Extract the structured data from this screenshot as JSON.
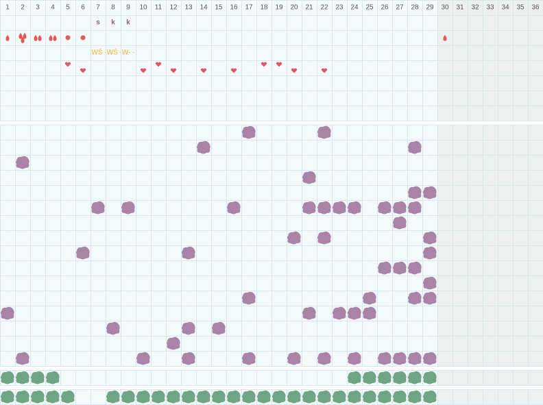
{
  "days": [
    1,
    2,
    3,
    4,
    5,
    6,
    7,
    8,
    9,
    10,
    11,
    12,
    13,
    14,
    15,
    16,
    17,
    18,
    19,
    20,
    21,
    22,
    23,
    24,
    25,
    26,
    27,
    28,
    29,
    30,
    31,
    32,
    33,
    34,
    35,
    36
  ],
  "letters": [
    {
      "day": 7,
      "text": "s"
    },
    {
      "day": 8,
      "text": "k"
    },
    {
      "day": 9,
      "text": "k"
    }
  ],
  "note": "WŚ -WŚ -W- -",
  "drops": [
    {
      "day": 1,
      "count": 1
    },
    {
      "day": 2,
      "count": 3
    },
    {
      "day": 3,
      "count": 2
    },
    {
      "day": 4,
      "count": 2
    },
    {
      "day": 30,
      "count": 1
    }
  ],
  "dots": [
    5,
    6
  ],
  "hearts_high": [
    5,
    11,
    18,
    19
  ],
  "hearts_low": [
    6,
    10,
    12,
    14,
    16,
    20,
    22
  ],
  "purple_rows": [
    [
      17,
      22
    ],
    [
      14,
      28
    ],
    [
      2
    ],
    [
      21
    ],
    [
      28,
      29
    ],
    [
      7,
      9,
      16,
      21,
      22,
      23,
      24,
      26,
      27,
      28
    ],
    [
      27
    ],
    [
      20,
      22,
      29
    ],
    [
      6,
      13,
      29
    ],
    [
      26,
      27,
      28
    ],
    [
      29
    ],
    [
      17,
      25,
      28,
      29
    ],
    [
      1,
      21,
      23,
      24,
      25
    ],
    [
      8,
      13,
      15
    ],
    [
      12
    ],
    [
      2,
      10,
      13,
      17,
      20,
      22,
      24,
      26,
      27,
      28,
      29
    ]
  ],
  "green_rows": [
    [
      1,
      2,
      3,
      4,
      24,
      25,
      26,
      27,
      28,
      29
    ],
    [
      1,
      2,
      3,
      4,
      5,
      8,
      9,
      10,
      11,
      12,
      13,
      14,
      15,
      16,
      17,
      18,
      19,
      20,
      21,
      22,
      23,
      24,
      25,
      26,
      27,
      28,
      29
    ]
  ]
}
